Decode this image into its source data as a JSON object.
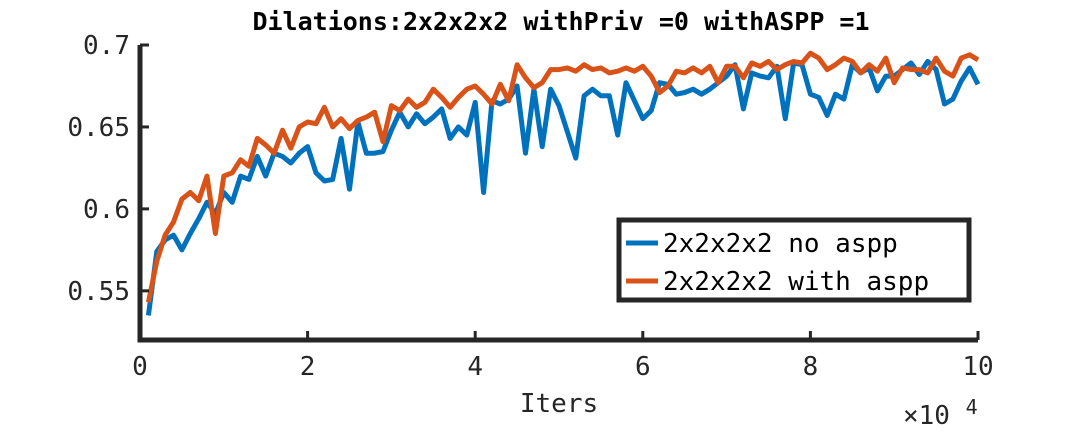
{
  "chart_data": {
    "type": "line",
    "title": "Dilations:2x2x2x2 withPriv =0 withASPP =1",
    "xlabel": "Iters",
    "ylabel": "",
    "x_exponent_base": "×10",
    "x_exponent_power": "4",
    "xlim": [
      0,
      10
    ],
    "ylim": [
      0.52,
      0.7
    ],
    "xticks": [
      0,
      2,
      4,
      6,
      8,
      10
    ],
    "xtick_labels": [
      "0",
      "2",
      "4",
      "6",
      "8",
      "10"
    ],
    "yticks": [
      0.55,
      0.6,
      0.65,
      0.7
    ],
    "ytick_labels": [
      "0.55",
      "0.6",
      "0.65",
      "0.7"
    ],
    "grid": false,
    "legend_position": "lower-right",
    "x": [
      0.1,
      0.2,
      0.3,
      0.4,
      0.5,
      0.6,
      0.7,
      0.8,
      0.9,
      1.0,
      1.1,
      1.2,
      1.3,
      1.4,
      1.5,
      1.6,
      1.7,
      1.8,
      1.9,
      2.0,
      2.1,
      2.2,
      2.3,
      2.4,
      2.5,
      2.6,
      2.7,
      2.8,
      2.9,
      3.0,
      3.1,
      3.2,
      3.3,
      3.4,
      3.5,
      3.6,
      3.7,
      3.8,
      3.9,
      4.0,
      4.1,
      4.2,
      4.3,
      4.4,
      4.5,
      4.6,
      4.7,
      4.8,
      4.9,
      5.0,
      5.1,
      5.2,
      5.3,
      5.4,
      5.5,
      5.6,
      5.7,
      5.8,
      5.9,
      6.0,
      6.1,
      6.2,
      6.3,
      6.4,
      6.5,
      6.6,
      6.7,
      6.8,
      6.9,
      7.0,
      7.1,
      7.2,
      7.3,
      7.4,
      7.5,
      7.6,
      7.7,
      7.8,
      7.9,
      8.0,
      8.1,
      8.2,
      8.3,
      8.4,
      8.5,
      8.6,
      8.7,
      8.8,
      8.9,
      9.0,
      9.1,
      9.2,
      9.3,
      9.4,
      9.5,
      9.6,
      9.7,
      9.8,
      9.9,
      10.0
    ],
    "series": [
      {
        "name": "2x2x2x2 no aspp",
        "color": "#0072bd",
        "values": [
          0.535,
          0.574,
          0.581,
          0.584,
          0.575,
          0.585,
          0.594,
          0.604,
          0.597,
          0.61,
          0.604,
          0.62,
          0.618,
          0.632,
          0.62,
          0.634,
          0.632,
          0.628,
          0.634,
          0.638,
          0.622,
          0.617,
          0.618,
          0.643,
          0.612,
          0.653,
          0.634,
          0.634,
          0.635,
          0.648,
          0.659,
          0.65,
          0.658,
          0.652,
          0.656,
          0.661,
          0.643,
          0.65,
          0.645,
          0.665,
          0.61,
          0.666,
          0.664,
          0.667,
          0.675,
          0.634,
          0.673,
          0.638,
          0.673,
          0.663,
          0.647,
          0.631,
          0.669,
          0.673,
          0.669,
          0.669,
          0.645,
          0.677,
          0.666,
          0.655,
          0.66,
          0.677,
          0.676,
          0.67,
          0.671,
          0.673,
          0.67,
          0.673,
          0.677,
          0.681,
          0.688,
          0.661,
          0.683,
          0.681,
          0.68,
          0.687,
          0.655,
          0.689,
          0.688,
          0.67,
          0.668,
          0.657,
          0.67,
          0.667,
          0.688,
          0.683,
          0.686,
          0.672,
          0.681,
          0.681,
          0.685,
          0.689,
          0.682,
          0.69,
          0.685,
          0.664,
          0.667,
          0.678,
          0.686,
          0.676
        ]
      },
      {
        "name": "2x2x2x2 with aspp",
        "color": "#d95319",
        "values": [
          0.543,
          0.568,
          0.584,
          0.592,
          0.606,
          0.61,
          0.605,
          0.62,
          0.585,
          0.62,
          0.622,
          0.63,
          0.626,
          0.643,
          0.639,
          0.634,
          0.648,
          0.637,
          0.65,
          0.653,
          0.652,
          0.662,
          0.65,
          0.655,
          0.649,
          0.654,
          0.656,
          0.659,
          0.641,
          0.663,
          0.66,
          0.667,
          0.662,
          0.665,
          0.673,
          0.668,
          0.662,
          0.668,
          0.673,
          0.675,
          0.67,
          0.664,
          0.676,
          0.666,
          0.688,
          0.68,
          0.674,
          0.677,
          0.685,
          0.685,
          0.686,
          0.684,
          0.688,
          0.685,
          0.686,
          0.683,
          0.684,
          0.686,
          0.684,
          0.687,
          0.681,
          0.671,
          0.675,
          0.684,
          0.683,
          0.686,
          0.683,
          0.687,
          0.677,
          0.687,
          0.687,
          0.68,
          0.689,
          0.687,
          0.69,
          0.685,
          0.688,
          0.69,
          0.689,
          0.695,
          0.692,
          0.685,
          0.688,
          0.692,
          0.69,
          0.683,
          0.688,
          0.684,
          0.692,
          0.677,
          0.686,
          0.685,
          0.685,
          0.683,
          0.692,
          0.684,
          0.681,
          0.692,
          0.694,
          0.691
        ]
      }
    ]
  }
}
